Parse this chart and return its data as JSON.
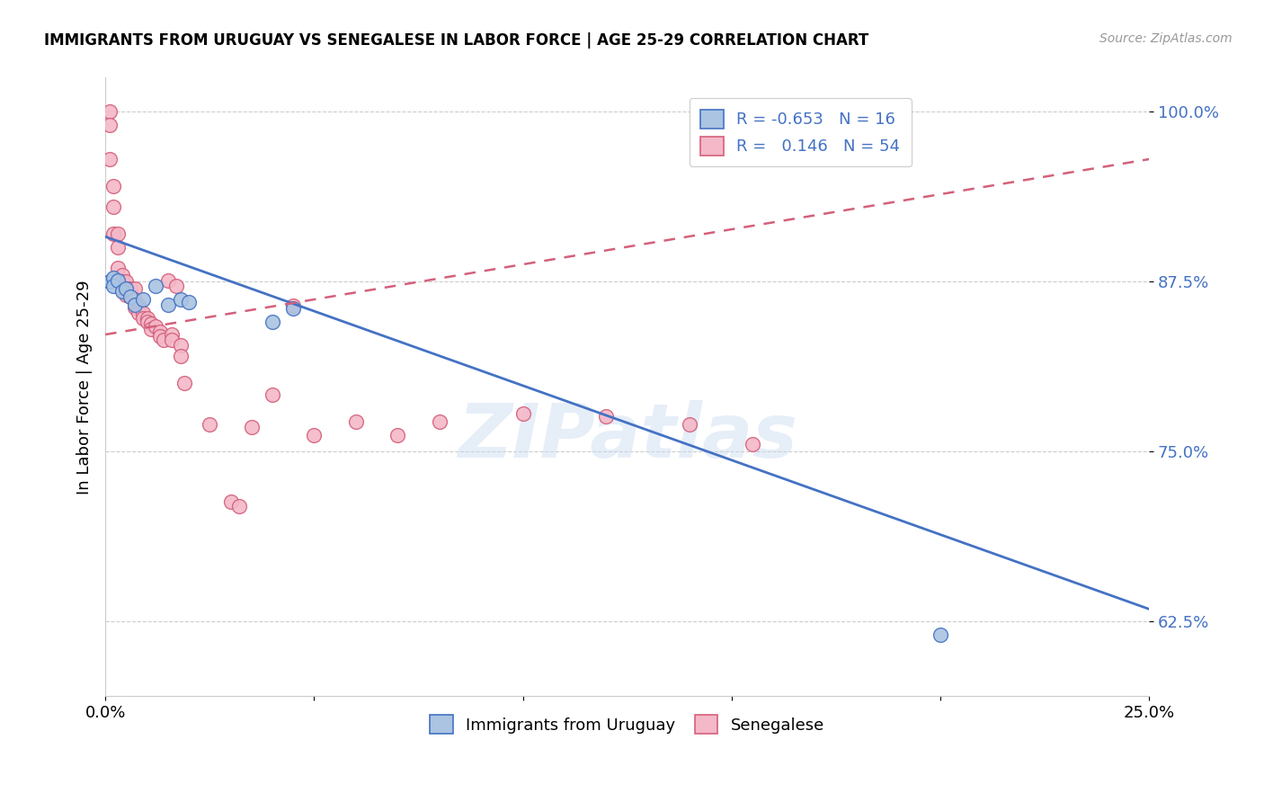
{
  "title": "IMMIGRANTS FROM URUGUAY VS SENEGALESE IN LABOR FORCE | AGE 25-29 CORRELATION CHART",
  "source": "Source: ZipAtlas.com",
  "ylabel": "In Labor Force | Age 25-29",
  "xlabel_uruguay": "Immigrants from Uruguay",
  "xlabel_senegalese": "Senegalese",
  "x_min": 0.0,
  "x_max": 0.25,
  "y_min": 0.57,
  "y_max": 1.025,
  "yticks": [
    0.625,
    0.75,
    0.875,
    1.0
  ],
  "ytick_labels": [
    "62.5%",
    "75.0%",
    "87.5%",
    "100.0%"
  ],
  "xticks": [
    0.0,
    0.05,
    0.1,
    0.15,
    0.2,
    0.25
  ],
  "xtick_labels": [
    "0.0%",
    "",
    "",
    "",
    "",
    "25.0%"
  ],
  "r_uruguay": -0.653,
  "n_uruguay": 16,
  "r_senegal": 0.146,
  "n_senegal": 54,
  "color_uruguay": "#aac4e2",
  "color_senegal": "#f4b8c8",
  "line_color_uruguay": "#4472c4",
  "line_color_senegal": "#d4607a",
  "watermark": "ZIPatlas",
  "uruguay_line_x0": 0.0,
  "uruguay_line_y0": 0.908,
  "uruguay_line_x1": 0.25,
  "uruguay_line_y1": 0.634,
  "senegal_line_x0": 0.0,
  "senegal_line_y0": 0.836,
  "senegal_line_x1": 0.25,
  "senegal_line_y1": 0.965,
  "uruguay_x": [
    0.001,
    0.002,
    0.002,
    0.003,
    0.004,
    0.005,
    0.006,
    0.007,
    0.009,
    0.012,
    0.015,
    0.018,
    0.02,
    0.04,
    0.045,
    0.2
  ],
  "uruguay_y": [
    0.875,
    0.878,
    0.872,
    0.876,
    0.868,
    0.87,
    0.864,
    0.858,
    0.862,
    0.872,
    0.858,
    0.862,
    0.86,
    0.845,
    0.855,
    0.615
  ],
  "senegal_x": [
    0.001,
    0.001,
    0.001,
    0.002,
    0.002,
    0.002,
    0.003,
    0.003,
    0.003,
    0.004,
    0.004,
    0.004,
    0.005,
    0.005,
    0.005,
    0.006,
    0.006,
    0.007,
    0.007,
    0.007,
    0.008,
    0.008,
    0.008,
    0.009,
    0.009,
    0.01,
    0.01,
    0.011,
    0.011,
    0.012,
    0.013,
    0.013,
    0.014,
    0.015,
    0.016,
    0.016,
    0.017,
    0.018,
    0.018,
    0.019,
    0.025,
    0.03,
    0.032,
    0.035,
    0.04,
    0.045,
    0.05,
    0.06,
    0.07,
    0.08,
    0.1,
    0.12,
    0.14,
    0.155
  ],
  "senegal_y": [
    1.0,
    0.99,
    0.965,
    0.945,
    0.93,
    0.91,
    0.91,
    0.9,
    0.885,
    0.88,
    0.875,
    0.87,
    0.875,
    0.87,
    0.865,
    0.87,
    0.864,
    0.87,
    0.862,
    0.856,
    0.858,
    0.855,
    0.852,
    0.852,
    0.848,
    0.848,
    0.845,
    0.844,
    0.84,
    0.842,
    0.838,
    0.835,
    0.832,
    0.876,
    0.836,
    0.832,
    0.872,
    0.828,
    0.82,
    0.8,
    0.77,
    0.713,
    0.71,
    0.768,
    0.792,
    0.857,
    0.762,
    0.772,
    0.762,
    0.772,
    0.778,
    0.776,
    0.77,
    0.755
  ]
}
